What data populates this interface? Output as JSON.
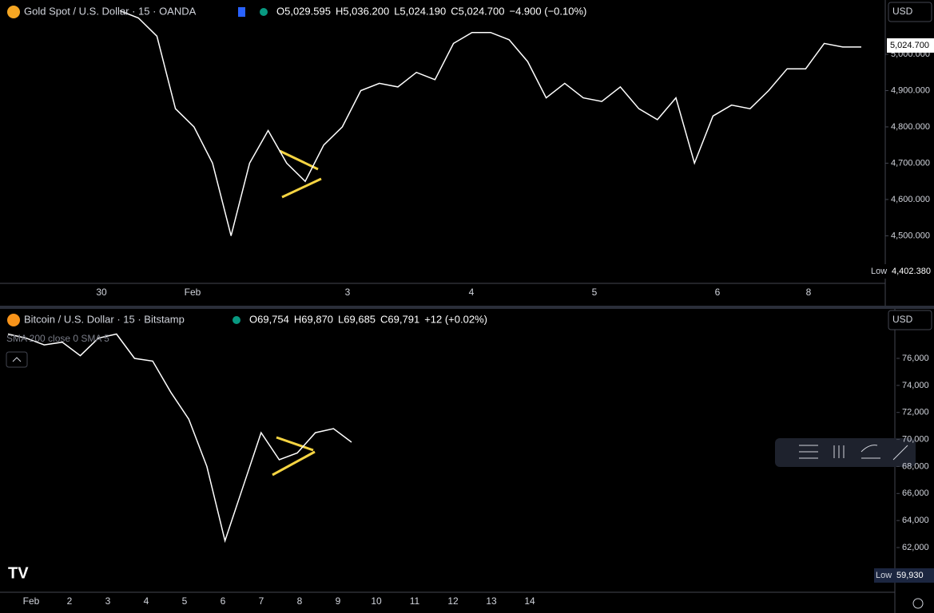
{
  "panels": [
    {
      "title": "Gold Spot / U.S. Dollar · 15 · OANDA",
      "ohlc": [
        "O5,029.595",
        "H5,036.200",
        "L5,024.190",
        "C5,024.700",
        "−4.900 (−0.10%)"
      ],
      "currency": "USD",
      "last_price": "5,024.700",
      "low_label": "Low",
      "low_value": "4,402.380",
      "ylim": [
        4369,
        5149.5
      ],
      "yticks": [
        {
          "value": 4500,
          "label": "4,500.000"
        },
        {
          "value": 4600,
          "label": "4,600.000"
        },
        {
          "value": 4700,
          "label": "4,700.000"
        },
        {
          "value": 4800,
          "label": "4,800.000"
        },
        {
          "value": 4900,
          "label": "4,900.000"
        },
        {
          "value": 5000,
          "label": "5,000.000"
        }
      ],
      "xlabels": [
        "30",
        "Feb",
        "3",
        "4",
        "5",
        "6",
        "8"
      ],
      "values": [
        5120,
        5100,
        5050,
        4850,
        4800,
        4700,
        4500,
        4700,
        4790,
        4700,
        4650,
        4750,
        4800,
        4900,
        4920,
        4910,
        4950,
        4930,
        5030,
        5060,
        5060,
        5040,
        4980,
        4880,
        4920,
        4880,
        4870,
        4910,
        4850,
        4820,
        4880,
        4700,
        4830,
        4860,
        4850,
        4900,
        4960,
        4960,
        5030,
        5020,
        5020
      ]
    },
    {
      "title": "Bitcoin / U.S. Dollar · 15 · Bitstamp",
      "ohlc": [
        "O69,754",
        "H69,870",
        "L69,685",
        "C69,791",
        "+12 (+0.02%)"
      ],
      "indicator": "SMA 200 close 0 SMA 5",
      "currency": "USD",
      "low_label": "Low",
      "low_value": "59,930",
      "ylim": [
        58693,
        79721
      ],
      "yticks": [
        {
          "value": 62000,
          "label": "62,000"
        },
        {
          "value": 64000,
          "label": "64,000"
        },
        {
          "value": 66000,
          "label": "66,000"
        },
        {
          "value": 68000,
          "label": "68,000"
        },
        {
          "value": 70000,
          "label": "70,000"
        },
        {
          "value": 72000,
          "label": "72,000"
        },
        {
          "value": 74000,
          "label": "74,000"
        },
        {
          "value": 76000,
          "label": "76,000"
        }
      ],
      "xlabels": [
        "Feb",
        "2",
        "3",
        "4",
        "5",
        "6",
        "7",
        "8",
        "9",
        "10",
        "11",
        "12",
        "13",
        "14"
      ],
      "values": [
        77800,
        77500,
        77000,
        77200,
        76200,
        77500,
        77800,
        76000,
        75800,
        73500,
        71500,
        68000,
        62500,
        66500,
        70500,
        68500,
        69000,
        70500,
        70800,
        69800
      ]
    }
  ]
}
